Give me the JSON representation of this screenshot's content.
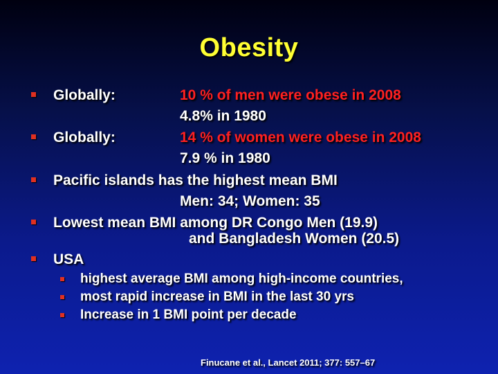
{
  "title": "Obesity",
  "bullets": [
    {
      "label": "Globally:",
      "value": "10 % of men were obese in 2008",
      "continuation": "4.8% in 1980"
    },
    {
      "label": "Globally:",
      "value": "14 % of women were obese in 2008",
      "continuation": "7.9 % in 1980"
    },
    {
      "label": "Pacific islands has the highest mean BMI",
      "continuation": "Men: 34; Women: 35"
    },
    {
      "label": "Lowest mean BMI among DR Congo Men (19.9)",
      "continuation": "and Bangladesh Women (20.5)"
    },
    {
      "label": "USA"
    }
  ],
  "sub_bullets": [
    "highest average BMI among high-income countries,",
    "most rapid increase in BMI in the last 30 yrs",
    "Increase in 1 BMI point per decade"
  ],
  "citation": "Finucane et al., Lancet 2011; 377: 557–67",
  "colors": {
    "title": "#ffff33",
    "highlight": "#ff2020",
    "bullet": "#e03020",
    "text": "#ffffff"
  }
}
